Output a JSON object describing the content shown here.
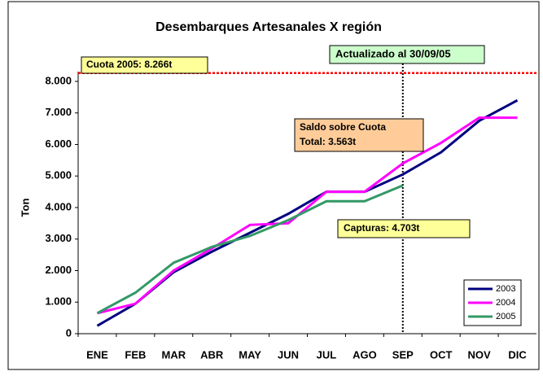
{
  "chart_data": {
    "type": "line",
    "title": "Desembarques Artesanales X región",
    "y_label": "Ton",
    "categories": [
      "ENE",
      "FEB",
      "MAR",
      "ABR",
      "MAY",
      "JUN",
      "JUL",
      "AGO",
      "SEP",
      "OCT",
      "NOV",
      "DIC"
    ],
    "series": [
      {
        "name": "2003",
        "color": "#000080",
        "values": [
          250,
          950,
          1950,
          2600,
          3200,
          3800,
          4500,
          4500,
          5050,
          5750,
          6750,
          7400
        ]
      },
      {
        "name": "2004",
        "color": "#ff00ff",
        "values": [
          650,
          950,
          2000,
          2700,
          3450,
          3500,
          4500,
          4500,
          5400,
          6050,
          6850,
          6850
        ]
      },
      {
        "name": "2005",
        "color": "#339966",
        "values": [
          650,
          1300,
          2250,
          2750,
          3100,
          3600,
          4200,
          4200,
          4700,
          null,
          null,
          null
        ]
      }
    ],
    "ylim": [
      0,
      8000
    ],
    "yticks": [
      0,
      {
        "value": 1000,
        "label": "1.000"
      },
      {
        "value": 2000,
        "label": "2.000"
      },
      {
        "value": 3000,
        "label": "3.000"
      },
      {
        "value": 4000,
        "label": "4.000"
      },
      {
        "value": 5000,
        "label": "5.000"
      },
      {
        "value": 6000,
        "label": "6.000"
      },
      {
        "value": 7000,
        "label": "7.000"
      },
      {
        "value": 8000,
        "label": "8.000"
      }
    ],
    "quota": {
      "value": 8266,
      "label": "Cuota 2005: 8.266t",
      "color": "#ff0000"
    },
    "update_marker": {
      "x": "SEP",
      "label": "Actualizado al 30/09/05"
    },
    "balance_note": [
      "Saldo sobre Cuota",
      "Total: 3.563t"
    ],
    "catch_note": "Capturas: 4.703t",
    "legend": "lower right"
  }
}
